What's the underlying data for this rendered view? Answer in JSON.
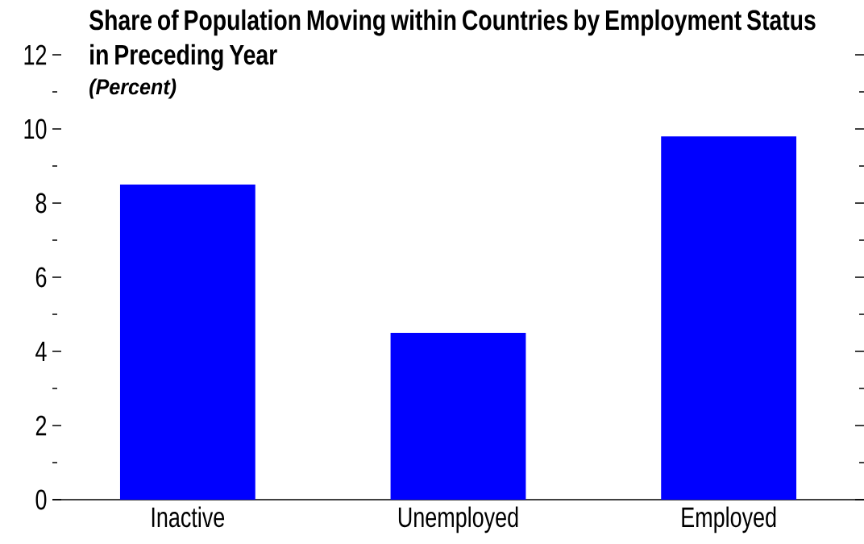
{
  "chart_data": {
    "type": "bar",
    "title": "Share of Population Moving within Countries by Employment Status in Preceding Year",
    "subtitle": "(Percent)",
    "categories": [
      "Inactive",
      "Unemployed",
      "Employed"
    ],
    "values": [
      8.5,
      4.5,
      9.8
    ],
    "color": "#0000ff",
    "ylim": [
      0,
      12
    ],
    "yticks": [
      0,
      {
        "value": 1,
        "label": null
      },
      2,
      {
        "value": 3,
        "label": null
      },
      4,
      {
        "value": 5,
        "label": null
      },
      6,
      {
        "value": 7,
        "label": null
      },
      8,
      {
        "value": 9,
        "label": null
      },
      10,
      {
        "value": 11,
        "label": null
      },
      12
    ]
  }
}
